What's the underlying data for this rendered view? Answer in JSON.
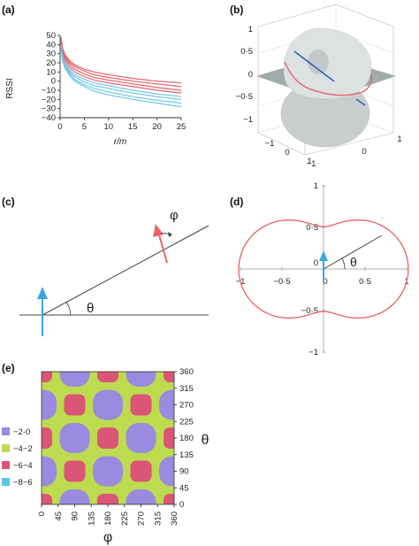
{
  "colors": {
    "red": "#e8616a",
    "blue": "#6fc6e6",
    "darkblue": "#2a63c7",
    "surface": "#d9dddd",
    "plane": "#9aa4a4",
    "heat_purple": "#9a8ae0",
    "heat_green": "#bddb4f",
    "heat_pink": "#db5577",
    "heat_cyan": "#5ec3e8"
  },
  "panel_a": {
    "label": "(a)",
    "chart_data": {
      "type": "line",
      "ylabel": "RSSI",
      "xlabel": "r/m",
      "xlim": [
        0,
        25
      ],
      "ylim": [
        -40,
        50
      ],
      "x_ticks": [
        0,
        5,
        10,
        15,
        20,
        25
      ],
      "x_tick_labels": [
        "0",
        "5",
        "10",
        "15",
        "20",
        "25"
      ],
      "y_ticks": [
        -40,
        -30,
        -20,
        -10,
        0,
        10,
        20,
        30,
        40,
        50
      ],
      "y_tick_labels": [
        "−40",
        "−30",
        "−20",
        "−10",
        "0",
        "10",
        "20",
        "30",
        "40",
        "50"
      ],
      "x": [
        0.2,
        0.5,
        1,
        2,
        3,
        5,
        7,
        10,
        15,
        20,
        25
      ],
      "series": [
        {
          "color": "red",
          "values": [
            48,
            36,
            29,
            22,
            18,
            13,
            10,
            7,
            3,
            0,
            -2
          ]
        },
        {
          "color": "red",
          "values": [
            46,
            34,
            27,
            20,
            16,
            11,
            7,
            4,
            0,
            -3,
            -6
          ]
        },
        {
          "color": "red",
          "values": [
            44,
            32,
            25,
            18,
            13,
            8,
            4,
            1,
            -3,
            -7,
            -10
          ]
        },
        {
          "color": "red",
          "values": [
            42,
            30,
            23,
            15,
            10,
            5,
            1,
            -2,
            -6,
            -10,
            -13
          ]
        },
        {
          "color": "blue",
          "values": [
            40,
            28,
            20,
            12,
            7,
            2,
            -2,
            -5,
            -10,
            -14,
            -17
          ]
        },
        {
          "color": "blue",
          "values": [
            38,
            26,
            18,
            10,
            5,
            -1,
            -5,
            -8,
            -13,
            -17,
            -20
          ]
        },
        {
          "color": "blue",
          "values": [
            36,
            24,
            16,
            8,
            2,
            -4,
            -8,
            -12,
            -17,
            -21,
            -24
          ]
        },
        {
          "color": "blue",
          "values": [
            34,
            22,
            14,
            6,
            0,
            -6,
            -11,
            -15,
            -20,
            -24,
            -28
          ]
        }
      ]
    }
  },
  "panel_b": {
    "label": "(b)",
    "z_tick_labels": [
      "1",
      "0·5",
      "0",
      "−0·5",
      "−1"
    ],
    "x_tick_labels": [
      "−1",
      "0",
      "1"
    ],
    "y_tick_labels": [
      "−1",
      "0",
      "1"
    ]
  },
  "panel_c": {
    "label": "(c)",
    "phi_symbol": "φ",
    "theta_symbol": "θ"
  },
  "panel_d": {
    "label": "(d)",
    "theta_symbol": "θ",
    "chart_data": {
      "type": "line",
      "xlim": [
        -1,
        1
      ],
      "ylim": [
        -1,
        1
      ],
      "x_tick_labels": [
        "−1",
        "−0·5",
        "0",
        "0·5",
        "1"
      ],
      "y_tick_labels": [
        "1",
        "0·5",
        "0",
        "−0·5",
        "−1"
      ],
      "curve": "r = sqrt(cos^2(theta) + 0.25*sin^2(theta))"
    }
  },
  "panel_e": {
    "label": "(e)",
    "xlabel": "φ",
    "ylabel": "θ",
    "x_tick_labels": [
      "0",
      "45",
      "90",
      "135",
      "180",
      "225",
      "270",
      "315",
      "360"
    ],
    "y_tick_labels": [
      "360",
      "315",
      "270",
      "225",
      "180",
      "135",
      "90",
      "45",
      "0"
    ],
    "legend": [
      {
        "label": "−2-0",
        "color": "heat_purple"
      },
      {
        "label": "−4−2",
        "color": "heat_green"
      },
      {
        "label": "−6−4",
        "color": "heat_pink"
      },
      {
        "label": "−8−6",
        "color": "heat_cyan"
      }
    ]
  }
}
